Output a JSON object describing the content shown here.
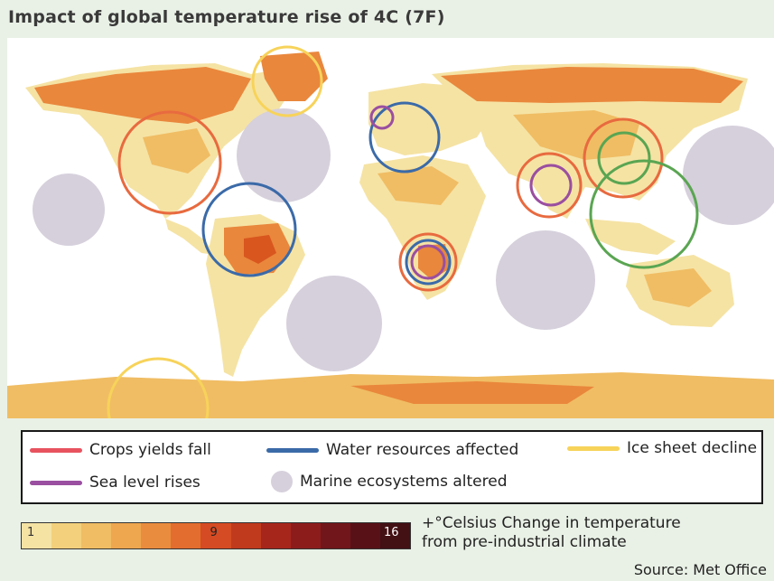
{
  "title": "Impact of global temperature rise of 4C (7F)",
  "legend": {
    "items": [
      {
        "label": "Crops yields fall",
        "color": "#e8525f",
        "symbol": "line"
      },
      {
        "label": "Water resources affected",
        "color": "#3b6aa8",
        "symbol": "line"
      },
      {
        "label": "Ice sheet decline",
        "color": "#f7d35a",
        "symbol": "line"
      },
      {
        "label": "Sea level rises",
        "color": "#9a4fa0",
        "symbol": "line"
      },
      {
        "label": "Marine ecosystems altered",
        "color": "#d6d0dc",
        "symbol": "dot"
      }
    ]
  },
  "color_scale": {
    "min_label": "1",
    "mid_label": "9",
    "max_label": "16",
    "colors": [
      "#f5e3a4",
      "#f3d07c",
      "#f0bd64",
      "#eea64f",
      "#ea8c3e",
      "#e36d2e",
      "#d54b23",
      "#c03a1e",
      "#a6261c",
      "#8c1c1c",
      "#71161a",
      "#581217",
      "#431014"
    ],
    "caption_line1": "+°Celsius Change in temperature",
    "caption_line2": "from pre-industrial climate"
  },
  "source": "Source: Met Office",
  "map_colors": {
    "land_base": "#f5e3a4",
    "warm": "#f0bd64",
    "hot": "#e9873c",
    "hotter": "#d9561f",
    "ocean": "#ffffff",
    "marine": "#d6d0dc"
  }
}
